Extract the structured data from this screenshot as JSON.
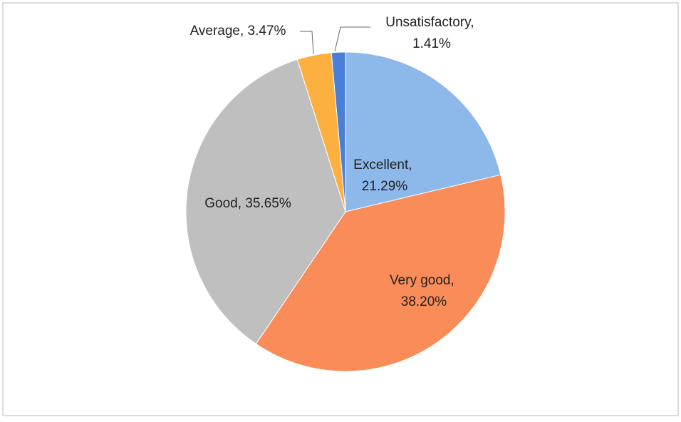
{
  "chart_data": {
    "type": "pie",
    "values": [
      21.29,
      38.2,
      35.65,
      3.47,
      1.41
    ],
    "value_labels": [
      "Excellent, 21.29%",
      "Very good, 38.20%",
      "Good, 35.65%",
      "Average, 3.47%",
      "Unsatisfactory, 1.41%"
    ],
    "colors": [
      "#8db8ea",
      "#f98c58",
      "#bfbfbf",
      "#fdb03f",
      "#4a7fd6"
    ]
  }
}
